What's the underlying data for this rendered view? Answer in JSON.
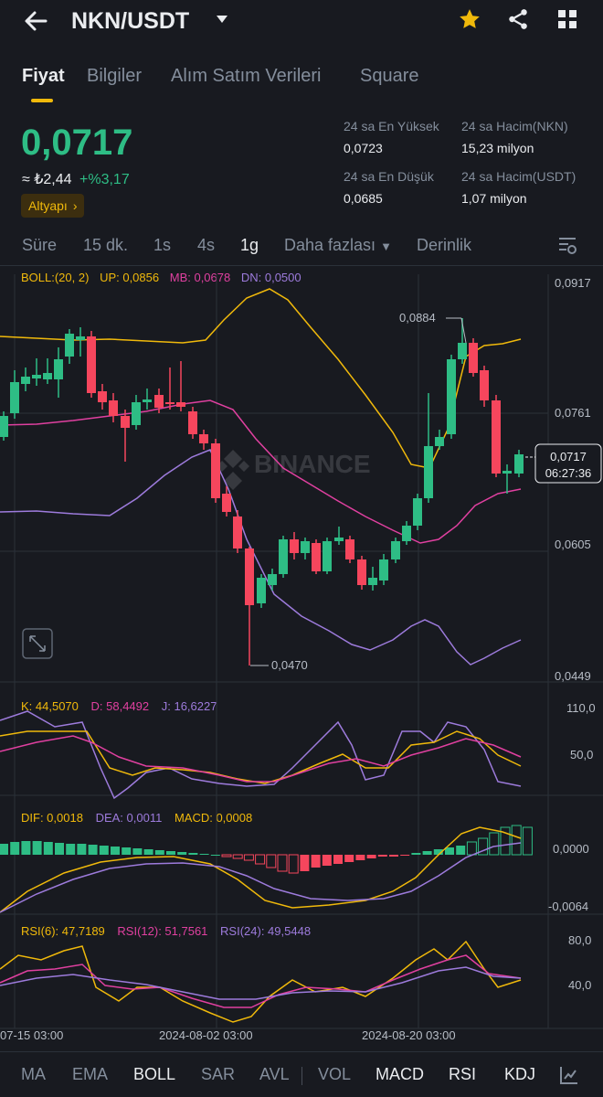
{
  "header": {
    "pair": "NKN/USDT"
  },
  "tabs": [
    {
      "label": "Fiyat",
      "active": true
    },
    {
      "label": "Bilgiler"
    },
    {
      "label": "Alım Satım Verileri"
    },
    {
      "label": "Square"
    }
  ],
  "price": {
    "last": "0,0717",
    "fiat": "≈ ₺2,44",
    "change": "+%3,17",
    "tag": "Altyapı"
  },
  "stats": {
    "high_label": "24 sa En Yüksek",
    "high": "0,0723",
    "vol_nkn_label": "24 sa Hacim(NKN)",
    "vol_nkn": "15,23 milyon",
    "low_label": "24 sa En Düşük",
    "low": "0,0685",
    "vol_usdt_label": "24 sa Hacim(USDT)",
    "vol_usdt": "1,07 milyon"
  },
  "intervals": [
    "Süre",
    "15 dk.",
    "1s",
    "4s",
    "1g",
    "Daha fazlası",
    "Derinlik"
  ],
  "active_interval": "1g",
  "boll": {
    "label": "BOLL:(20, 2)",
    "up": "UP: 0,0856",
    "mb": "MB: 0,0678",
    "dn": "DN: 0,0500"
  },
  "price_axis": [
    "0,0917",
    "0,0761",
    "0,0605",
    "0,0449"
  ],
  "price_marker": {
    "price": "0,0717",
    "countdown": "06:27:36"
  },
  "annotations": {
    "high": "0,0884",
    "low": "0,0470"
  },
  "watermark": "BINANCE",
  "kdj": {
    "k": "K: 44,5070",
    "d": "D: 58,4492",
    "j": "J: 16,6227",
    "axis": [
      "110,0",
      "50,0"
    ]
  },
  "macd": {
    "dif": "DIF: 0,0018",
    "dea": "DEA: 0,0011",
    "macd": "MACD: 0,0008",
    "axis": [
      "0,0000",
      "-0,0064"
    ]
  },
  "rsi": {
    "r6": "RSI(6): 47,7189",
    "r12": "RSI(12): 51,7561",
    "r24": "RSI(24): 49,5448",
    "axis": [
      "80,0",
      "40,0"
    ]
  },
  "dates": [
    "07-15 03:00",
    "2024-08-02 03:00",
    "2024-08-20 03:00"
  ],
  "bottom_tabs": [
    "MA",
    "EMA",
    "BOLL",
    "SAR",
    "AVL",
    "VOL",
    "MACD",
    "RSI",
    "KDJ"
  ],
  "colors": {
    "up": "#2EBD85",
    "down": "#F6465D",
    "accent": "#F0B90B",
    "boll_up": "#F0B90B",
    "boll_mb": "#E040A0",
    "boll_dn": "#9D7BDC"
  }
}
